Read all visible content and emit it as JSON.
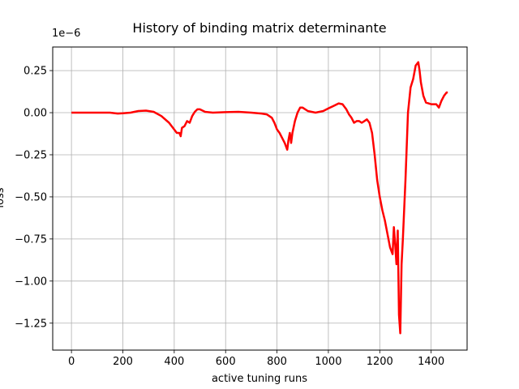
{
  "chart_data": {
    "type": "line",
    "title": "History of binding matrix determinante",
    "xlabel": "active tuning runs",
    "ylabel": "loss",
    "offset_label": "1e−6",
    "xlim": [
      -73,
      1540
    ],
    "ylim": [
      -1.41,
      0.39
    ],
    "xticks": [
      0,
      200,
      400,
      600,
      800,
      1000,
      1200,
      1400
    ],
    "yticks": [
      0.25,
      0.0,
      -0.25,
      -0.5,
      -0.75,
      -1.0,
      -1.25
    ],
    "ytick_labels": [
      "0.25",
      "0.00",
      "−0.25",
      "−0.50",
      "−0.75",
      "−1.00",
      "−1.25"
    ],
    "grid": true,
    "series": [
      {
        "color": "#ff0000",
        "x": [
          0,
          50,
          100,
          150,
          180,
          200,
          230,
          260,
          290,
          320,
          350,
          380,
          400,
          410,
          420,
          425,
          430,
          440,
          450,
          460,
          470,
          480,
          490,
          500,
          520,
          550,
          600,
          650,
          700,
          740,
          760,
          780,
          790,
          800,
          810,
          820,
          830,
          840,
          845,
          850,
          855,
          860,
          870,
          880,
          890,
          900,
          920,
          950,
          980,
          1000,
          1020,
          1040,
          1055,
          1070,
          1080,
          1090,
          1100,
          1110,
          1120,
          1130,
          1140,
          1150,
          1160,
          1170,
          1180,
          1190,
          1200,
          1210,
          1220,
          1230,
          1240,
          1250,
          1255,
          1260,
          1265,
          1270,
          1275,
          1280,
          1285,
          1290,
          1300,
          1310,
          1320,
          1330,
          1340,
          1350,
          1355,
          1360,
          1370,
          1380,
          1400,
          1420,
          1430,
          1440,
          1450,
          1460,
          1465
        ],
        "y": [
          0.0,
          0.0,
          0.0,
          0.0,
          -0.005,
          -0.003,
          0.0,
          0.01,
          0.012,
          0.005,
          -0.02,
          -0.06,
          -0.1,
          -0.12,
          -0.12,
          -0.14,
          -0.09,
          -0.08,
          -0.05,
          -0.06,
          -0.02,
          0.005,
          0.02,
          0.02,
          0.005,
          0.0,
          0.003,
          0.005,
          0.0,
          -0.005,
          -0.01,
          -0.03,
          -0.06,
          -0.1,
          -0.12,
          -0.15,
          -0.18,
          -0.22,
          -0.16,
          -0.12,
          -0.18,
          -0.12,
          -0.05,
          0.0,
          0.03,
          0.03,
          0.01,
          0.0,
          0.01,
          0.025,
          0.04,
          0.055,
          0.05,
          0.02,
          -0.01,
          -0.03,
          -0.06,
          -0.05,
          -0.05,
          -0.06,
          -0.05,
          -0.04,
          -0.06,
          -0.12,
          -0.25,
          -0.4,
          -0.5,
          -0.58,
          -0.64,
          -0.72,
          -0.8,
          -0.84,
          -0.68,
          -0.78,
          -0.9,
          -0.7,
          -1.2,
          -1.31,
          -0.9,
          -0.75,
          -0.4,
          0.0,
          0.15,
          0.2,
          0.28,
          0.3,
          0.25,
          0.18,
          0.1,
          0.06,
          0.05,
          0.05,
          0.03,
          0.07,
          0.1,
          0.12,
          0.12
        ]
      }
    ]
  }
}
